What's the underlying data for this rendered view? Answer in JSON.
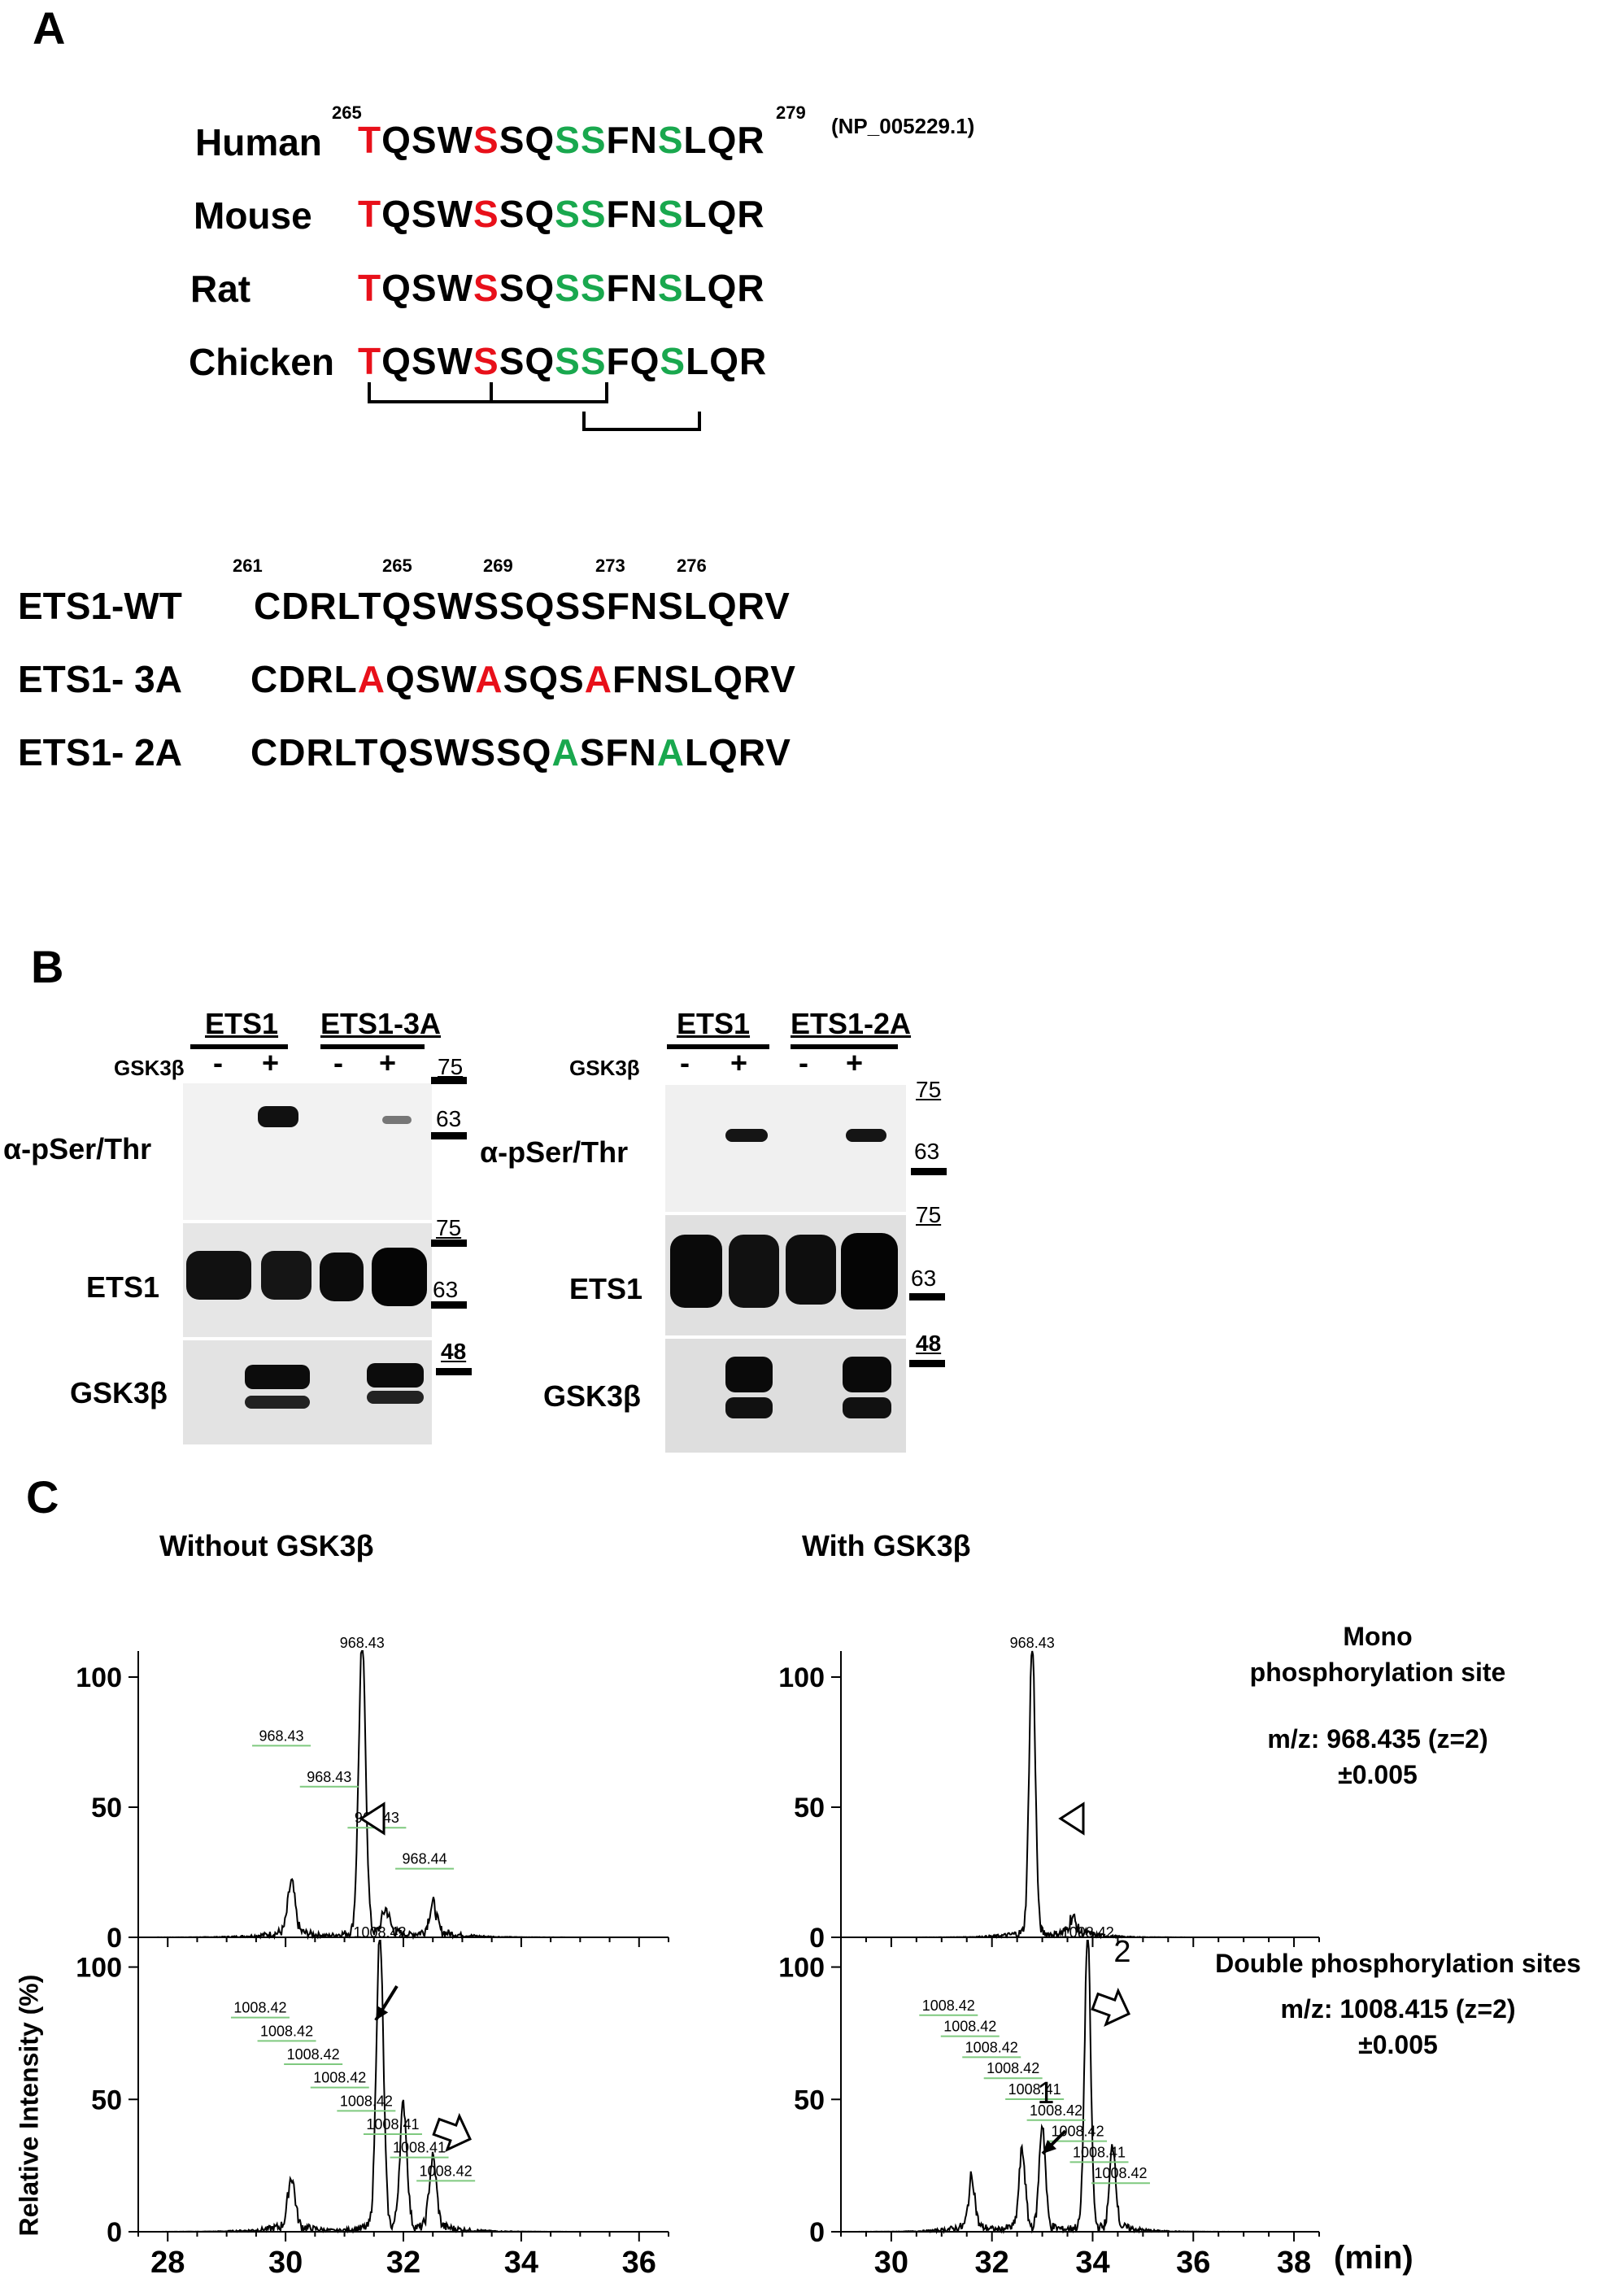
{
  "panelA": {
    "letter": "A",
    "start_num": "265",
    "end_num": "279",
    "accession": "(NP_005229.1)",
    "species": [
      {
        "name": "Human",
        "t": "T",
        "a": "QSW",
        "s1": "S",
        "b": "SQ",
        "s2": "SS",
        "c": "FN",
        "s3": "S",
        "d": "LQR"
      },
      {
        "name": "Mouse",
        "t": "T",
        "a": "QSW",
        "s1": "S",
        "b": "SQ",
        "s2": "SS",
        "c": "FN",
        "s3": "S",
        "d": "LQR"
      },
      {
        "name": "Rat",
        "t": "T",
        "a": "QSW",
        "s1": "S",
        "b": "SQ",
        "s2": "SS",
        "c": "FN",
        "s3": "S",
        "d": "LQR"
      },
      {
        "name": "Chicken",
        "t": "T",
        "a": "QSW",
        "s1": "S",
        "b": "SQ",
        "s2": "SS",
        "c": "FQ",
        "s3": "S",
        "d": "LQR"
      }
    ],
    "mut_positions": [
      "261",
      "265",
      "269",
      "273",
      "276"
    ],
    "mutants": [
      {
        "name": "ETS1-WT",
        "seq": "CDRLTQSWSSQSSFNSLQRV"
      },
      {
        "name": "ETS1- 3A",
        "p1": "CDRL",
        "a1": "A",
        "p2": "QSW",
        "a2": "A",
        "p3": "SQS",
        "a3": "A",
        "p4": "FNSLQRV"
      },
      {
        "name": "ETS1- 2A",
        "p1": "CDRLTQSWSSQ",
        "a1": "A",
        "p2": "SFN",
        "a2": "A",
        "p3": "LQRV"
      }
    ]
  },
  "panelB": {
    "letter": "B",
    "left": {
      "group1": "ETS1",
      "group2": "ETS1-3A",
      "gsk_label": "GSK3β",
      "signs": [
        "-",
        "+",
        "-",
        "+"
      ],
      "rows": [
        "α-pSer/Thr",
        "ETS1",
        "GSK3β"
      ],
      "markers": [
        "75",
        "63",
        "75",
        "63",
        "48"
      ]
    },
    "right": {
      "group1": "ETS1",
      "group2": "ETS1-2A",
      "gsk_label": "GSK3β",
      "signs": [
        "-",
        "+",
        "-",
        "+"
      ],
      "rows": [
        "α-pSer/Thr",
        "ETS1",
        "GSK3β"
      ],
      "markers": [
        "75",
        "63",
        "75",
        "63",
        "48"
      ]
    }
  },
  "panelC": {
    "letter": "C",
    "left_title": "Without GSK3β",
    "right_title": "With GSK3β",
    "ylabel": "Relative Intensity (%)",
    "xunit": "(min)",
    "mono_title1": "Mono",
    "mono_title2": "phosphorylation site",
    "mono_mz": "m/z: 968.435 (z=2)",
    "mono_tol": "±0.005",
    "double_title": "Double phosphorylation sites",
    "double_mz": "m/z: 1008.415 (z=2)",
    "double_tol": "±0.005",
    "peak1_label": "1",
    "peak2_label": "2"
  },
  "chart_data": [
    {
      "type": "line",
      "title": "Without GSK3β — Mono phosphorylation site",
      "xlabel": "",
      "ylabel": "Relative Intensity (%)",
      "xlim": [
        27.5,
        36.5
      ],
      "ylim": [
        0,
        110
      ],
      "xticks": [
        28,
        30,
        32,
        34,
        36
      ],
      "yticks": [
        0,
        50,
        100
      ],
      "peaks": [
        {
          "x": 30.1,
          "y": 18
        },
        {
          "x": 31.3,
          "y": 110
        },
        {
          "x": 31.7,
          "y": 8
        },
        {
          "x": 32.5,
          "y": 10
        }
      ],
      "peak_labels": [
        "968.43",
        "968.43",
        "968.43",
        "968.43",
        "968.44"
      ]
    },
    {
      "type": "line",
      "title": "Without GSK3β — Double phosphorylation sites",
      "xlabel": "",
      "ylabel": "Relative Intensity (%)",
      "xlim": [
        27.5,
        36.5
      ],
      "ylim": [
        0,
        110
      ],
      "xticks": [
        28,
        30,
        32,
        34,
        36
      ],
      "yticks": [
        0,
        50,
        100
      ],
      "peaks": [
        {
          "x": 30.1,
          "y": 18
        },
        {
          "x": 31.6,
          "y": 110
        },
        {
          "x": 32.0,
          "y": 45
        },
        {
          "x": 32.5,
          "y": 25
        }
      ],
      "peak_labels": [
        "1008.42",
        "1008.42",
        "1008.42",
        "1008.42",
        "1008.42",
        "1008.42",
        "1008.41",
        "1008.41",
        "1008.42"
      ]
    },
    {
      "type": "line",
      "title": "With GSK3β — Mono phosphorylation site",
      "xlabel": "",
      "ylabel": "",
      "xlim": [
        29,
        38.5
      ],
      "ylim": [
        0,
        110
      ],
      "xticks": [
        30,
        32,
        34,
        36,
        38
      ],
      "yticks": [
        0,
        50,
        100
      ],
      "peaks": [
        {
          "x": 32.8,
          "y": 110
        },
        {
          "x": 33.6,
          "y": 5
        }
      ],
      "peak_labels": [
        "968.43"
      ]
    },
    {
      "type": "line",
      "title": "With GSK3β — Double phosphorylation sites",
      "xlabel": "(min)",
      "ylabel": "",
      "xlim": [
        29,
        38.5
      ],
      "ylim": [
        0,
        110
      ],
      "xticks": [
        30,
        32,
        34,
        36,
        38
      ],
      "yticks": [
        0,
        50,
        100
      ],
      "peaks": [
        {
          "x": 31.6,
          "y": 18
        },
        {
          "x": 32.6,
          "y": 28
        },
        {
          "x": 33.0,
          "y": 38
        },
        {
          "x": 33.9,
          "y": 110
        },
        {
          "x": 34.4,
          "y": 30
        }
      ],
      "peak_labels": [
        "1008.42",
        "1008.42",
        "1008.42",
        "1008.42",
        "1008.42",
        "1008.41",
        "1008.42",
        "1008.42",
        "1008.41",
        "1008.42"
      ]
    }
  ]
}
